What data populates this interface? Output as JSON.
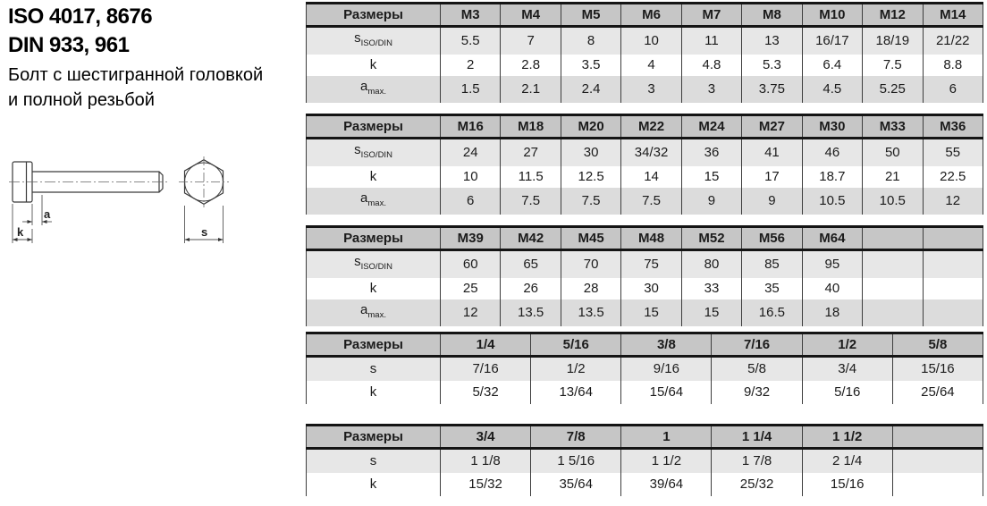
{
  "page": {
    "title_line1": "ISO 4017, 8676",
    "title_line2": "DIN 933, 961",
    "subtitle_line1": "Болт с шестигранной головкой",
    "subtitle_line2": "и полной резьбой"
  },
  "drawing": {
    "labels": {
      "a": "a",
      "k": "k",
      "s": "s"
    }
  },
  "colors": {
    "table_header_bg": "#c6c6c6",
    "row_shade_light": "#e7e7e7",
    "row_shade_dark": "#dcdcdc",
    "border_heavy": "#141414",
    "border_thin": "#3d3d3d"
  },
  "tables": [
    {
      "corner_label": "Размеры",
      "columns": [
        "M3",
        "M4",
        "M5",
        "M6",
        "M7",
        "M8",
        "M10",
        "M12",
        "M14"
      ],
      "rows": [
        {
          "label": "s",
          "sub": "ISO/DIN",
          "values": [
            "5.5",
            "7",
            "8",
            "10",
            "11",
            "13",
            "16/17",
            "18/19",
            "21/22"
          ]
        },
        {
          "label": "k",
          "sub": "",
          "values": [
            "2",
            "2.8",
            "3.5",
            "4",
            "4.8",
            "5.3",
            "6.4",
            "7.5",
            "8.8"
          ]
        },
        {
          "label": "a",
          "sub": "max.",
          "values": [
            "1.5",
            "2.1",
            "2.4",
            "3",
            "3",
            "3.75",
            "4.5",
            "5.25",
            "6"
          ]
        }
      ]
    },
    {
      "corner_label": "Размеры",
      "columns": [
        "M16",
        "M18",
        "M20",
        "M22",
        "M24",
        "M27",
        "M30",
        "M33",
        "M36"
      ],
      "rows": [
        {
          "label": "s",
          "sub": "ISO/DIN",
          "values": [
            "24",
            "27",
            "30",
            "34/32",
            "36",
            "41",
            "46",
            "50",
            "55"
          ]
        },
        {
          "label": "k",
          "sub": "",
          "values": [
            "10",
            "11.5",
            "12.5",
            "14",
            "15",
            "17",
            "18.7",
            "21",
            "22.5"
          ]
        },
        {
          "label": "a",
          "sub": "max.",
          "values": [
            "6",
            "7.5",
            "7.5",
            "7.5",
            "9",
            "9",
            "10.5",
            "10.5",
            "12"
          ]
        }
      ]
    },
    {
      "corner_label": "Размеры",
      "columns": [
        "M39",
        "M42",
        "M45",
        "M48",
        "M52",
        "M56",
        "M64",
        "",
        ""
      ],
      "rows": [
        {
          "label": "s",
          "sub": "ISO/DIN",
          "values": [
            "60",
            "65",
            "70",
            "75",
            "80",
            "85",
            "95",
            "",
            ""
          ]
        },
        {
          "label": "k",
          "sub": "",
          "values": [
            "25",
            "26",
            "28",
            "30",
            "33",
            "35",
            "40",
            "",
            ""
          ]
        },
        {
          "label": "a",
          "sub": "max.",
          "values": [
            "12",
            "13.5",
            "13.5",
            "15",
            "15",
            "16.5",
            "18",
            "",
            ""
          ]
        }
      ]
    },
    {
      "corner_label": "Размеры",
      "columns": [
        "1/4",
        "5/16",
        "3/8",
        "7/16",
        "1/2",
        "5/8"
      ],
      "rows": [
        {
          "label": "s",
          "sub": "",
          "values": [
            "7/16",
            "1/2",
            "9/16",
            "5/8",
            "3/4",
            "15/16"
          ]
        },
        {
          "label": "k",
          "sub": "",
          "values": [
            "5/32",
            "13/64",
            "15/64",
            "9/32",
            "5/16",
            "25/64"
          ]
        }
      ]
    },
    {
      "corner_label": "Размеры",
      "columns": [
        "3/4",
        "7/8",
        "1",
        "1 1/4",
        "1 1/2",
        ""
      ],
      "rows": [
        {
          "label": "s",
          "sub": "",
          "values": [
            "1 1/8",
            "1 5/16",
            "1 1/2",
            "1 7/8",
            "2 1/4",
            ""
          ]
        },
        {
          "label": "k",
          "sub": "",
          "values": [
            "15/32",
            "35/64",
            "39/64",
            "25/32",
            "15/16",
            ""
          ]
        }
      ]
    }
  ]
}
